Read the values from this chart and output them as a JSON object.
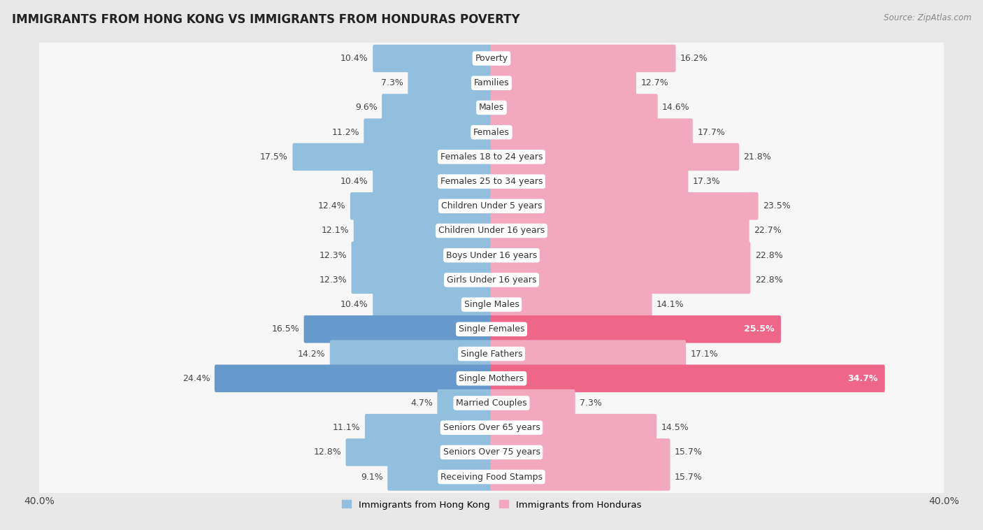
{
  "title": "IMMIGRANTS FROM HONG KONG VS IMMIGRANTS FROM HONDURAS POVERTY",
  "source": "Source: ZipAtlas.com",
  "categories": [
    "Poverty",
    "Families",
    "Males",
    "Females",
    "Females 18 to 24 years",
    "Females 25 to 34 years",
    "Children Under 5 years",
    "Children Under 16 years",
    "Boys Under 16 years",
    "Girls Under 16 years",
    "Single Males",
    "Single Females",
    "Single Fathers",
    "Single Mothers",
    "Married Couples",
    "Seniors Over 65 years",
    "Seniors Over 75 years",
    "Receiving Food Stamps"
  ],
  "hong_kong_values": [
    10.4,
    7.3,
    9.6,
    11.2,
    17.5,
    10.4,
    12.4,
    12.1,
    12.3,
    12.3,
    10.4,
    16.5,
    14.2,
    24.4,
    4.7,
    11.1,
    12.8,
    9.1
  ],
  "honduras_values": [
    16.2,
    12.7,
    14.6,
    17.7,
    21.8,
    17.3,
    23.5,
    22.7,
    22.8,
    22.8,
    14.1,
    25.5,
    17.1,
    34.7,
    7.3,
    14.5,
    15.7,
    15.7
  ],
  "hong_kong_color": "#92bfde",
  "honduras_color": "#f2a8bf",
  "hong_kong_label": "Immigrants from Hong Kong",
  "honduras_label": "Immigrants from Honduras",
  "background_color": "#e8e8e8",
  "bar_background": "#f7f7f7",
  "xlim": 40.0,
  "label_fontsize": 9,
  "value_fontsize": 9,
  "title_fontsize": 12,
  "highlight_rows": [
    11,
    13
  ],
  "highlight_hk_color": "#6699cc",
  "highlight_hn_color": "#ee6688",
  "axis_label_left": "40.0%",
  "axis_label_right": "40.0%"
}
